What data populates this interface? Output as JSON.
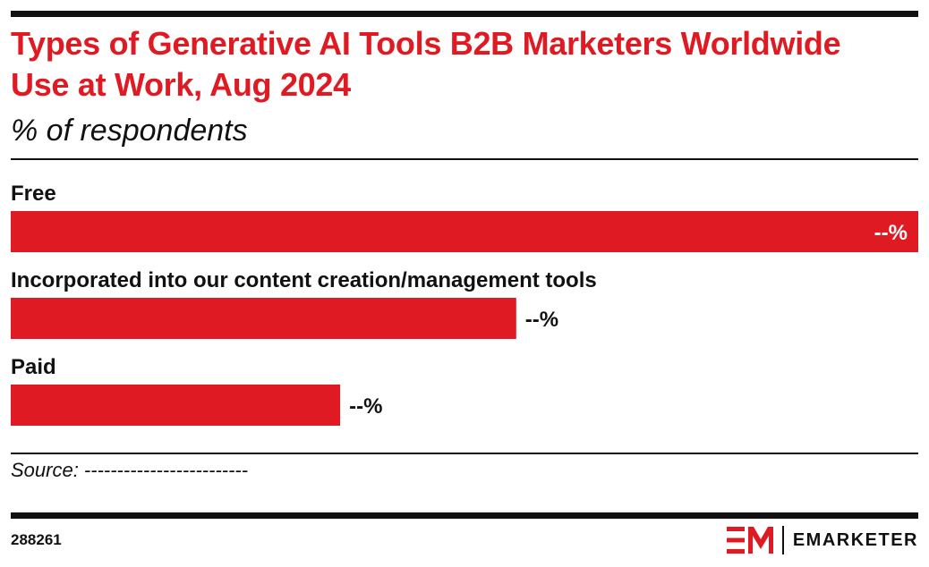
{
  "header": {
    "title": "Types of Generative AI Tools B2B Marketers Worldwide Use at Work, Aug 2024",
    "subtitle": "% of respondents"
  },
  "chart_data": {
    "type": "bar",
    "orientation": "horizontal",
    "categories": [
      "Free",
      "Incorporated into our content creation/management tools",
      "Paid"
    ],
    "values": [
      100,
      55.7,
      36.3
    ],
    "value_labels": [
      "--%",
      "--%",
      "--%"
    ],
    "value_scale_note": "Actual values are masked in the chart; relative bar lengths estimated with the longest bar as 100.",
    "bar_color": "#e01a22",
    "xlim": [
      0,
      100
    ],
    "grid": false,
    "legend": "none"
  },
  "footer": {
    "source": "Source: -------------------------",
    "chart_id": "288261",
    "brand": "EMARKETER"
  },
  "colors": {
    "accent": "#e01a22",
    "text": "#111111",
    "background": "#ffffff"
  },
  "icons": {
    "brand_logo": "em-logo-icon"
  }
}
